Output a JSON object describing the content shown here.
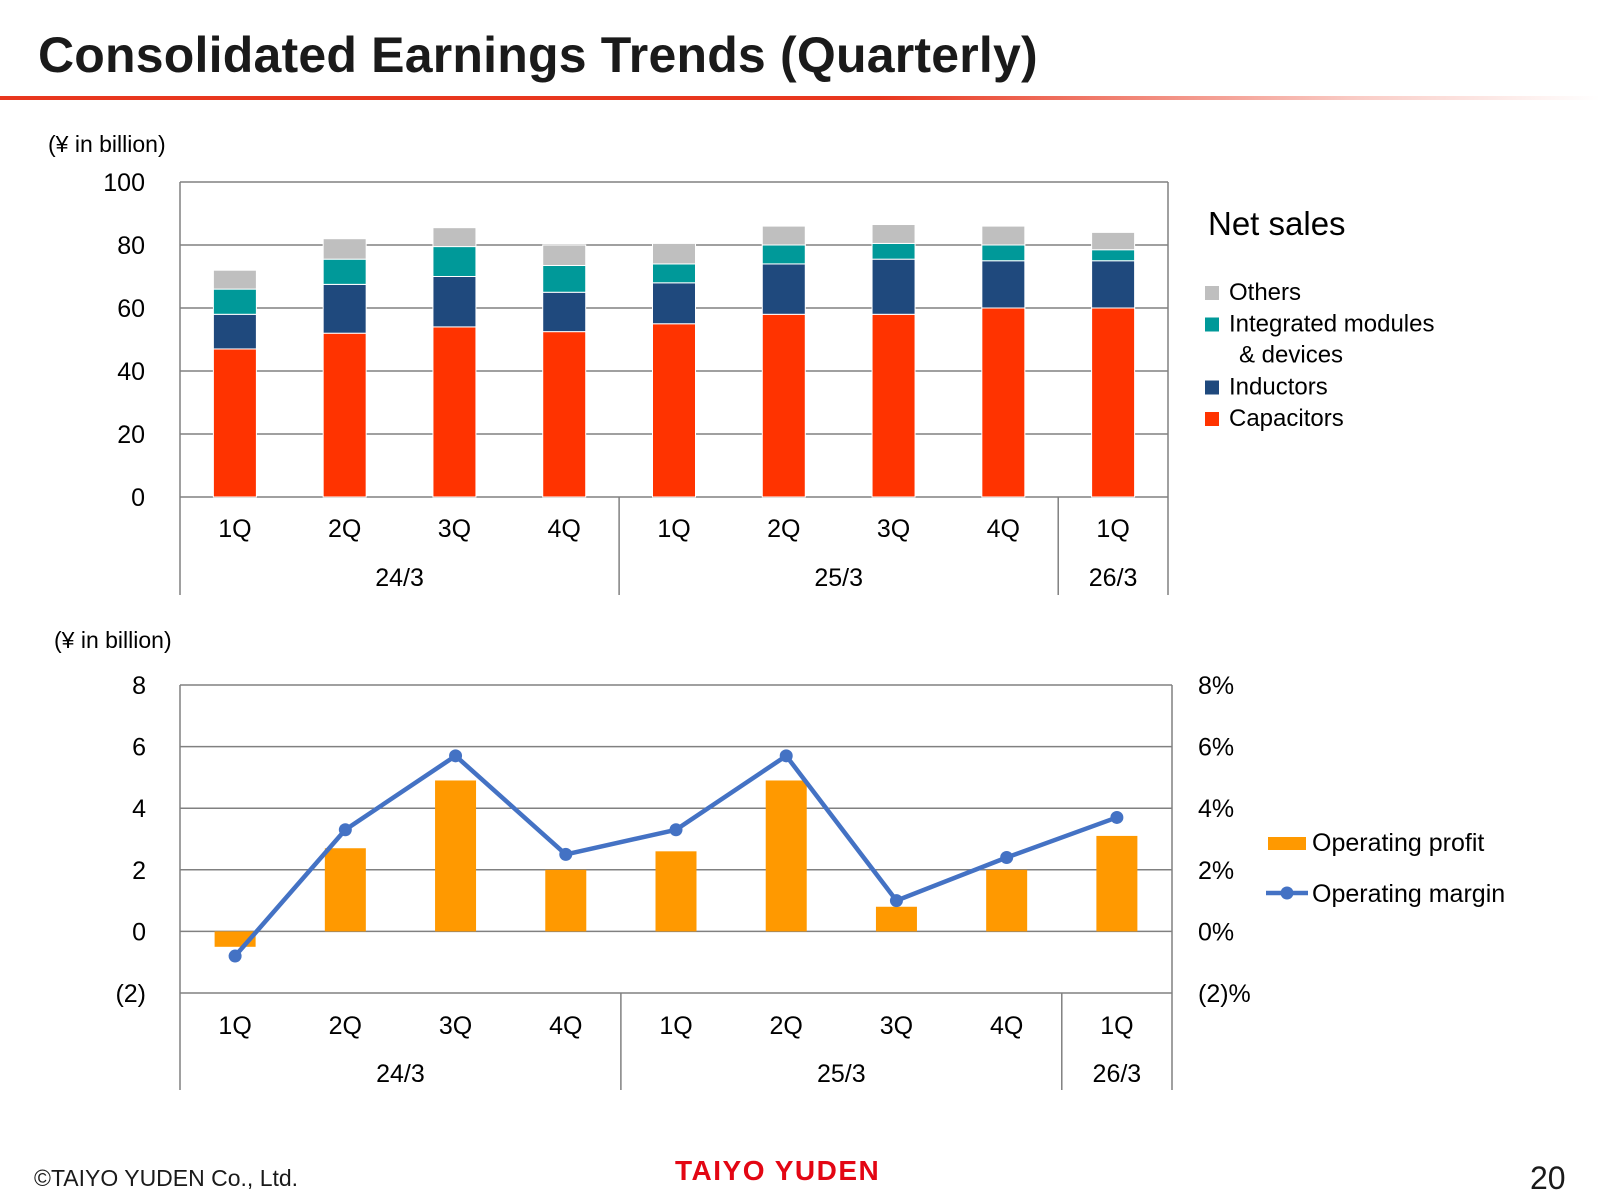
{
  "page": {
    "title": "Consolidated Earnings Trends (Quarterly)",
    "copyright": "©TAIYO YUDEN Co., Ltd.",
    "logo_text": "TAIYO YUDEN",
    "page_number": "20"
  },
  "chart_data": [
    {
      "type": "bar",
      "stacked": true,
      "title": "Net sales",
      "unit_label": "(¥ in billion)",
      "categories": [
        "1Q",
        "2Q",
        "3Q",
        "4Q",
        "1Q",
        "2Q",
        "3Q",
        "4Q",
        "1Q"
      ],
      "groups": [
        {
          "label": "24/3",
          "count": 4
        },
        {
          "label": "25/3",
          "count": 4
        },
        {
          "label": "26/3",
          "count": 1
        }
      ],
      "ylim": [
        0,
        100
      ],
      "yticks": [
        0,
        20,
        40,
        60,
        80,
        100
      ],
      "ytick_labels": [
        "0",
        "20",
        "40",
        "60",
        "80",
        "100"
      ],
      "series": [
        {
          "name": "Capacitors",
          "color": "#ff3300",
          "values": [
            47,
            52,
            54,
            52.5,
            55,
            58,
            58,
            60,
            60
          ]
        },
        {
          "name": "Inductors",
          "color": "#1f497d",
          "values": [
            11,
            15.5,
            16,
            12.5,
            13,
            16,
            17.5,
            15,
            15
          ]
        },
        {
          "name": "Integrated modules & devices",
          "color": "#009999",
          "values": [
            8,
            8,
            9.5,
            8.5,
            6,
            6,
            5,
            5,
            3.5
          ]
        },
        {
          "name": "Others",
          "color": "#bfbfbf",
          "values": [
            6,
            6.5,
            6,
            6.5,
            6.5,
            6,
            6,
            6,
            5.5
          ]
        }
      ],
      "legend": {
        "title": "Net sales",
        "items": [
          {
            "label_lines": [
              "Others"
            ],
            "color": "#bfbfbf"
          },
          {
            "label_lines": [
              "Integrated modules",
              "& devices"
            ],
            "color": "#009999"
          },
          {
            "label_lines": [
              "Inductors"
            ],
            "color": "#1f497d"
          },
          {
            "label_lines": [
              "Capacitors"
            ],
            "color": "#ff3300"
          }
        ]
      }
    },
    {
      "type": "bar+line",
      "unit_label": "(¥ in billion)",
      "categories": [
        "1Q",
        "2Q",
        "3Q",
        "4Q",
        "1Q",
        "2Q",
        "3Q",
        "4Q",
        "1Q"
      ],
      "groups": [
        {
          "label": "24/3",
          "count": 4
        },
        {
          "label": "25/3",
          "count": 4
        },
        {
          "label": "26/3",
          "count": 1
        }
      ],
      "ylim": [
        -2,
        8
      ],
      "yticks": [
        -2,
        0,
        2,
        4,
        6,
        8
      ],
      "ytick_labels": [
        "(2)",
        "0",
        "2",
        "4",
        "6",
        "8"
      ],
      "y2lim": [
        -2,
        8
      ],
      "y2ticks": [
        -2,
        0,
        2,
        4,
        6,
        8
      ],
      "y2tick_labels": [
        "(2)%",
        "0%",
        "2%",
        "4%",
        "6%",
        "8%"
      ],
      "series": [
        {
          "name": "Operating profit",
          "type": "bar",
          "color": "#ff9900",
          "values": [
            -0.5,
            2.7,
            4.9,
            2.0,
            2.6,
            4.9,
            0.8,
            2.0,
            3.1
          ]
        },
        {
          "name": "Operating margin",
          "type": "line",
          "color": "#4472c4",
          "axis": "right",
          "values": [
            -0.8,
            3.3,
            5.7,
            2.5,
            3.3,
            5.7,
            1.0,
            2.4,
            3.7
          ]
        }
      ],
      "legend": {
        "items": [
          {
            "label": "Operating profit",
            "kind": "bar",
            "color": "#ff9900"
          },
          {
            "label": "Operating margin",
            "kind": "line",
            "color": "#4472c4"
          }
        ]
      }
    }
  ]
}
